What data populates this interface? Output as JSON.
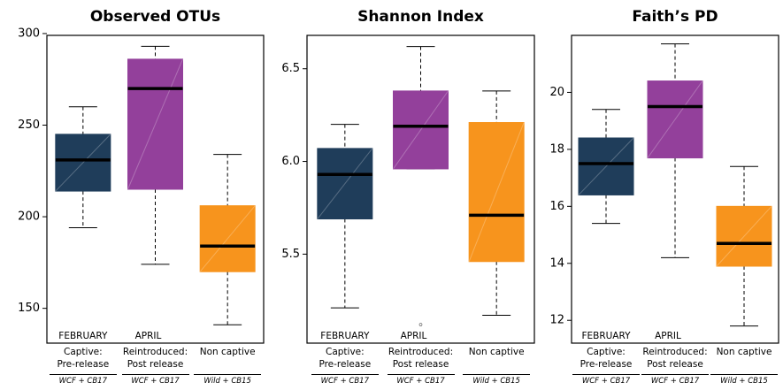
{
  "chart_data": [
    {
      "type": "box",
      "title": "Observed OTUs",
      "categories": [
        "Captive:\nPre-release",
        "Reintroduced:\nPost release",
        "Non captive"
      ],
      "group_labels": [
        "WCF + CB17",
        "WCF + CB17",
        "Wild + CB15"
      ],
      "period_labels": [
        "FEBRUARY",
        "APRIL"
      ],
      "colors": [
        "#1f3d5a",
        "#93409b",
        "#f7941d"
      ],
      "boxes": [
        {
          "min": 194,
          "q1": 214,
          "median": 231,
          "q3": 245,
          "max": 260,
          "outliers": []
        },
        {
          "min": 174,
          "q1": 215,
          "median": 270,
          "q3": 286,
          "max": 293,
          "outliers": []
        },
        {
          "min": 141,
          "q1": 170,
          "median": 184,
          "q3": 206,
          "max": 234,
          "outliers": []
        }
      ],
      "ylim": [
        131,
        299
      ],
      "yticks": [
        150,
        200,
        250,
        300
      ]
    },
    {
      "type": "box",
      "title": "Shannon Index",
      "categories": [
        "Captive:\nPre-release",
        "Reintroduced:\nPost release",
        "Non captive"
      ],
      "group_labels": [
        "WCF + CB17",
        "WCF + CB17",
        "Wild + CB15"
      ],
      "period_labels": [
        "FEBRUARY",
        "APRIL"
      ],
      "colors": [
        "#1f3d5a",
        "#93409b",
        "#f7941d"
      ],
      "boxes": [
        {
          "min": 5.21,
          "q1": 5.69,
          "median": 5.93,
          "q3": 6.07,
          "max": 6.2,
          "outliers": []
        },
        {
          "min": 5.96,
          "q1": 5.96,
          "median": 6.19,
          "q3": 6.38,
          "max": 6.62,
          "outliers": [
            5.12
          ]
        },
        {
          "min": 5.17,
          "q1": 5.46,
          "median": 5.71,
          "q3": 6.21,
          "max": 6.38,
          "outliers": []
        }
      ],
      "ylim": [
        5.02,
        6.68
      ],
      "yticks": [
        5.5,
        {
          "value": 6,
          "label": "6.0"
        },
        6.5
      ]
    },
    {
      "type": "box",
      "title": "Faith’s PD",
      "categories": [
        "Captive:\nPre-release",
        "Reintroduced:\nPost release",
        "Non captive"
      ],
      "group_labels": [
        "WCF + CB17",
        "WCF + CB17",
        "Wild + CB15"
      ],
      "period_labels": [
        "FEBRUARY",
        "APRIL"
      ],
      "colors": [
        "#1f3d5a",
        "#93409b",
        "#f7941d"
      ],
      "boxes": [
        {
          "min": 15.4,
          "q1": 16.4,
          "median": 17.5,
          "q3": 18.4,
          "max": 19.4,
          "outliers": []
        },
        {
          "min": 14.2,
          "q1": 17.7,
          "median": 19.5,
          "q3": 20.4,
          "max": 21.7,
          "outliers": []
        },
        {
          "min": 11.8,
          "q1": 13.9,
          "median": 14.7,
          "q3": 16,
          "max": 17.4,
          "outliers": []
        }
      ],
      "ylim": [
        11.2,
        22
      ],
      "yticks": [
        12,
        14,
        16,
        18,
        20
      ]
    }
  ]
}
